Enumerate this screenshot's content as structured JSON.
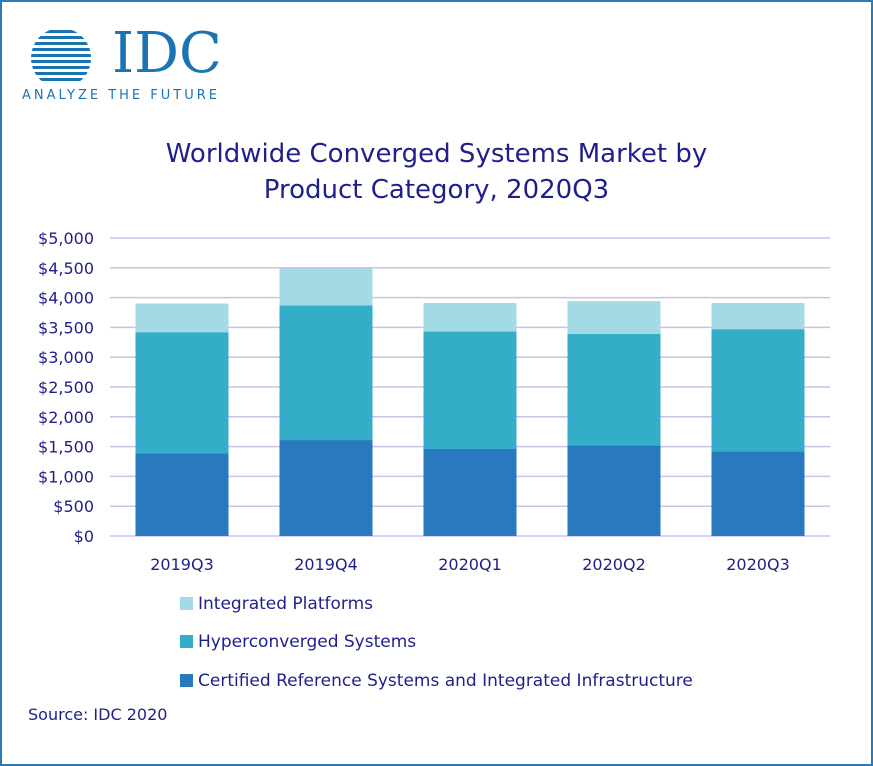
{
  "logo": {
    "word": "IDC",
    "tagline": "ANALYZE THE FUTURE"
  },
  "chart_data": {
    "type": "bar",
    "stacked": true,
    "title_lines": [
      "Worldwide Converged Systems Market by",
      "Product Category, 2020Q3"
    ],
    "categories": [
      "2019Q3",
      "2019Q4",
      "2020Q1",
      "2020Q2",
      "2020Q3"
    ],
    "series": [
      {
        "name": "Certified Reference Systems and Integrated Infrastructure",
        "color": "#2979be",
        "values": [
          1390,
          1610,
          1460,
          1520,
          1420
        ]
      },
      {
        "name": "Hyperconverged Systems",
        "color": "#34adc9",
        "values": [
          2030,
          2260,
          1970,
          1870,
          2050
        ]
      },
      {
        "name": "Integrated Platforms",
        "color": "#a3dae5",
        "values": [
          480,
          620,
          480,
          550,
          440
        ]
      }
    ],
    "ylim": [
      0,
      5000
    ],
    "yticks": [
      "$0",
      "$500",
      "$1,000",
      "$1,500",
      "$2,000",
      "$2,500",
      "$3,000",
      "$3,500",
      "$4,000",
      "$4,500",
      "$5,000"
    ],
    "ytick_values": [
      0,
      500,
      1000,
      1500,
      2000,
      2500,
      3000,
      3500,
      4000,
      4500,
      5000
    ],
    "grid": true,
    "grid_color": "#c9c3e6",
    "legend_position": "bottom",
    "xlabel": "",
    "ylabel": ""
  },
  "legend_order": [
    "Integrated Platforms",
    "Hyperconverged Systems",
    "Certified Reference Systems and Integrated Infrastructure"
  ],
  "source": "Source: IDC 2020",
  "colors": {
    "text": "#1f1f8c",
    "logo": "#1a74b4",
    "border": "#2b7bb9"
  }
}
